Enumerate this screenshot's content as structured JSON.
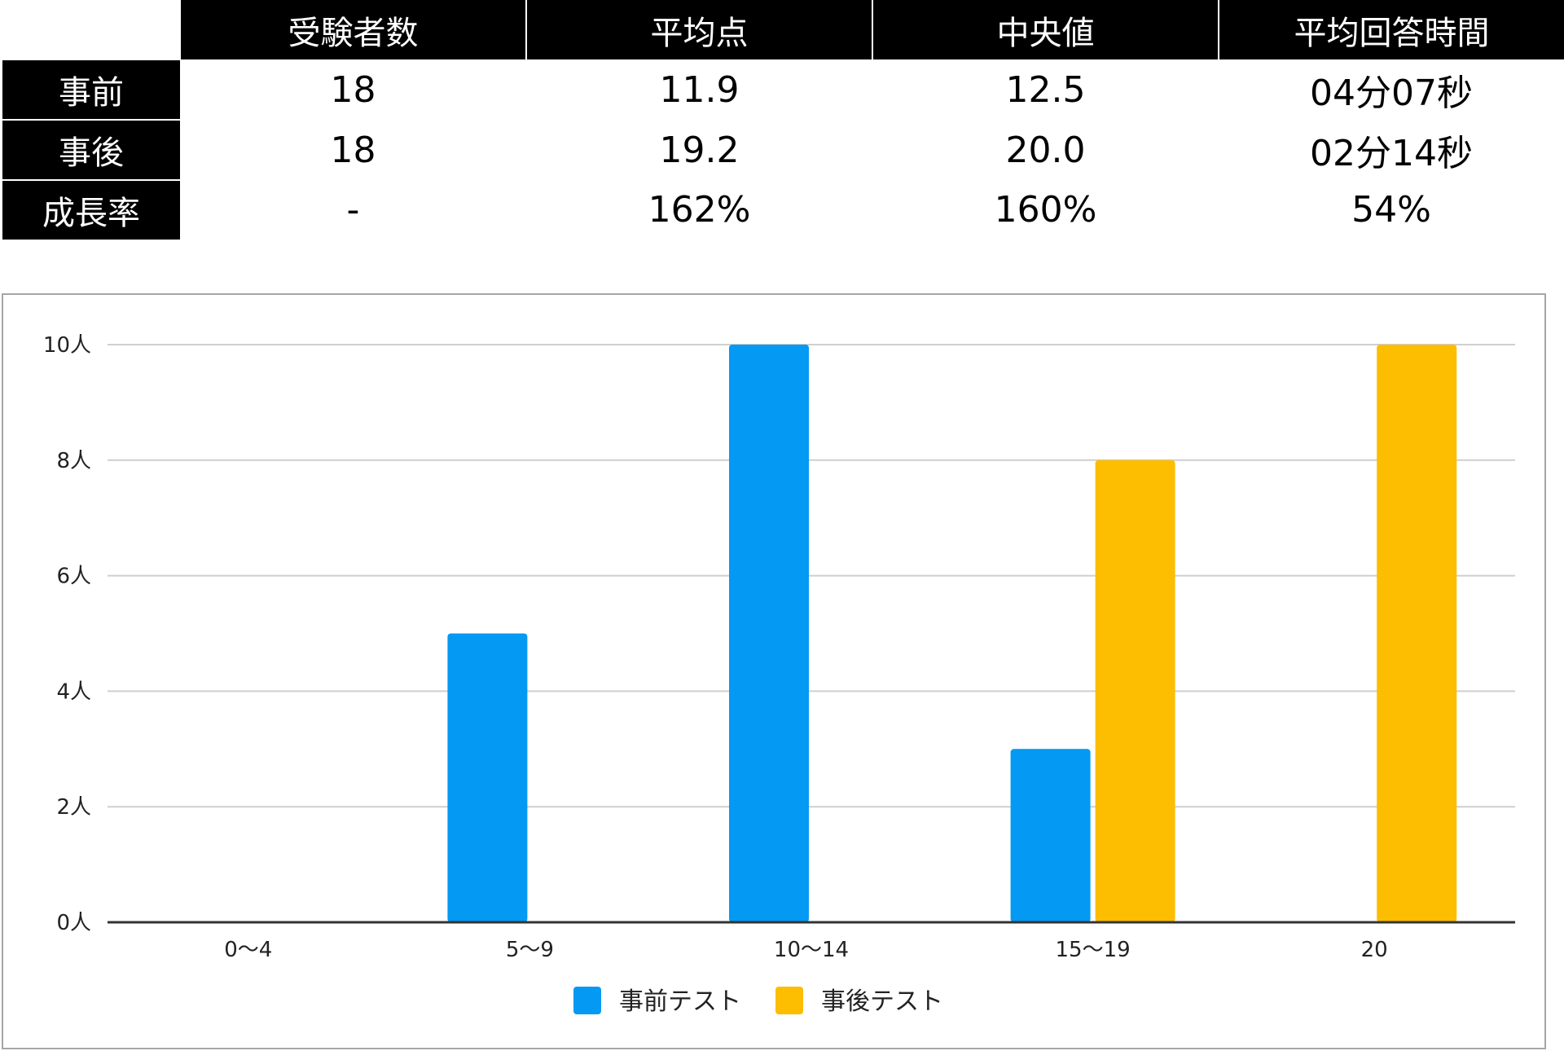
{
  "table": {
    "headers": [
      "",
      "受験者数",
      "平均点",
      "中央値",
      "平均回答時間"
    ],
    "rows": [
      {
        "label": "事前",
        "cells": [
          "18",
          "11.9",
          "12.5",
          "04分07秒"
        ]
      },
      {
        "label": "事後",
        "cells": [
          "18",
          "19.2",
          "20.0",
          "02分14秒"
        ]
      },
      {
        "label": "成長率",
        "cells": [
          "-",
          "162%",
          "160%",
          "54%"
        ]
      }
    ]
  },
  "chart_data": {
    "type": "bar",
    "categories": [
      "0〜4",
      "5〜9",
      "10〜14",
      "15〜19",
      "20"
    ],
    "series": [
      {
        "name": "事前テスト",
        "values": [
          0,
          5,
          10,
          3,
          0
        ],
        "color": "#0499f2"
      },
      {
        "name": "事後テスト",
        "values": [
          0,
          0,
          0,
          8,
          10
        ],
        "color": "#fdbd00"
      }
    ],
    "y_ticks": [
      0,
      2,
      4,
      6,
      8,
      10
    ],
    "y_tick_suffix": "人",
    "ylim": [
      0,
      10
    ],
    "grid": true,
    "legend_position": "bottom"
  }
}
